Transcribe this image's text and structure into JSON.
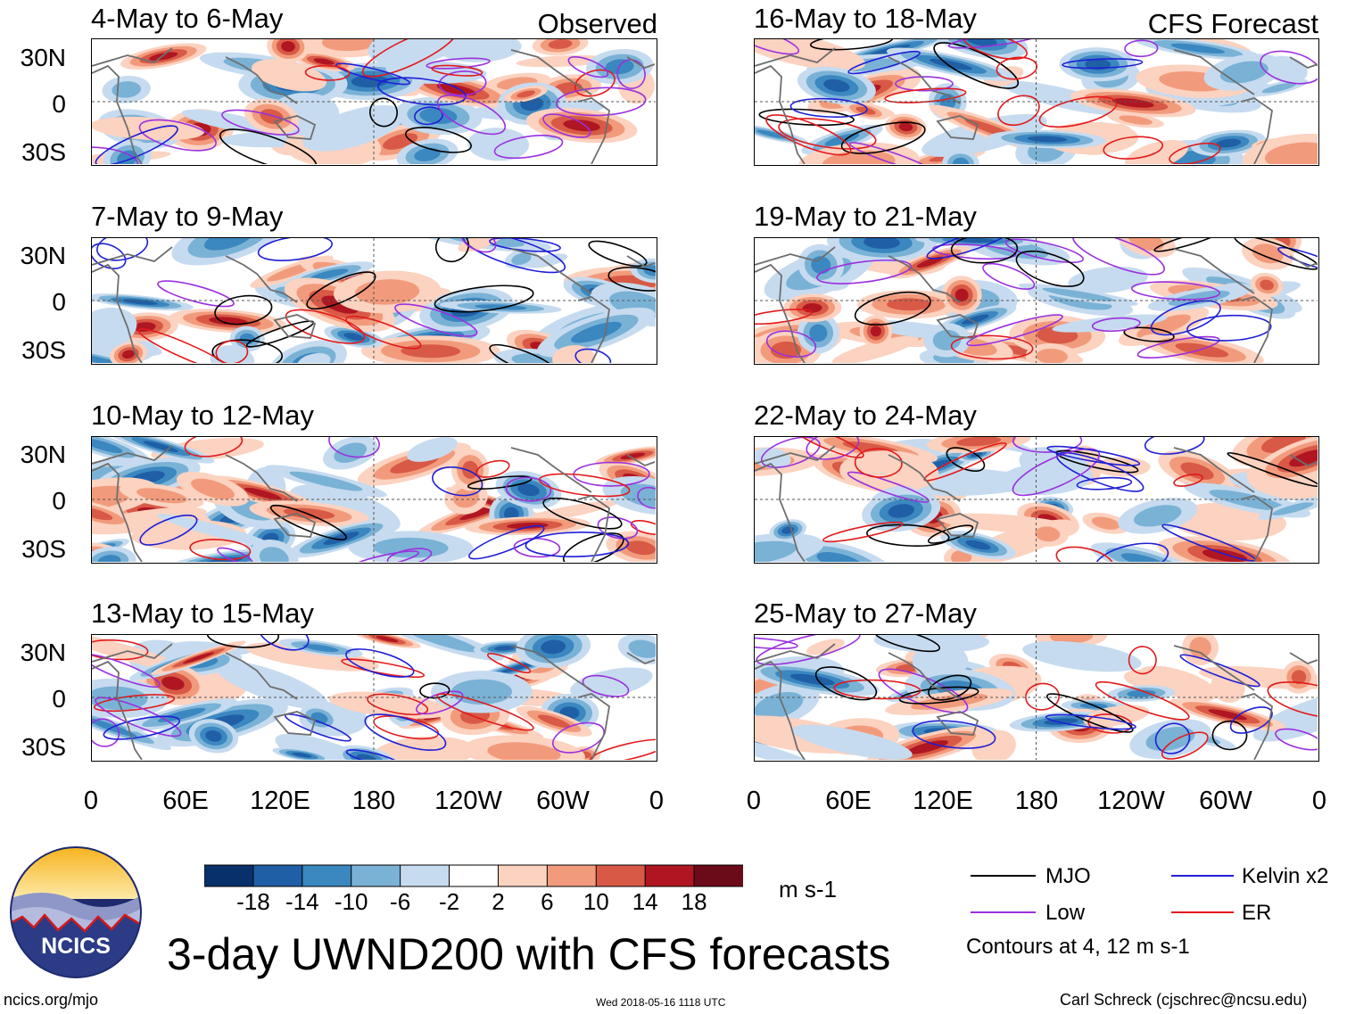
{
  "figure": {
    "title": "3-day UWND200 with CFS forecasts",
    "source_link": "ncics.org/mjo",
    "timestamp": "Wed 2018-05-16 1118 UTC",
    "author": "Carl Schreck (cjschrec@ncsu.edu)",
    "logo_text": "NCICS"
  },
  "column_labels": {
    "observed": "Observed",
    "forecast": "CFS Forecast"
  },
  "panels": {
    "observed": [
      "4-May to 6-May",
      "7-May to 9-May",
      "10-May to 12-May",
      "13-May to 15-May"
    ],
    "forecast": [
      "16-May to 18-May",
      "19-May to 21-May",
      "22-May to 24-May",
      "25-May to 27-May"
    ]
  },
  "axes": {
    "lat_ticks": [
      "30N",
      "0",
      "30S"
    ],
    "lon_ticks": [
      "0",
      "60E",
      "120E",
      "180",
      "120W",
      "60W",
      "0"
    ]
  },
  "colorbar": {
    "units": "m s-1",
    "labels": [
      "-18",
      "-14",
      "-10",
      "-6",
      "-2",
      "2",
      "6",
      "10",
      "14",
      "18"
    ],
    "colors": [
      "#08306b",
      "#1f5fa6",
      "#3b87c0",
      "#7ab2d6",
      "#c6dbef",
      "#ffffff",
      "#fcd2c0",
      "#f29b7c",
      "#d85a46",
      "#b01622",
      "#6b0a18"
    ]
  },
  "legend": {
    "items": [
      {
        "label": "MJO",
        "color": "#000000"
      },
      {
        "label": "Kelvin x2",
        "color": "#1f1fd6"
      },
      {
        "label": "Low",
        "color": "#9b30e0"
      },
      {
        "label": "ER",
        "color": "#e31a1c"
      }
    ],
    "note": "Contours at 4, 12 m s-1"
  }
}
